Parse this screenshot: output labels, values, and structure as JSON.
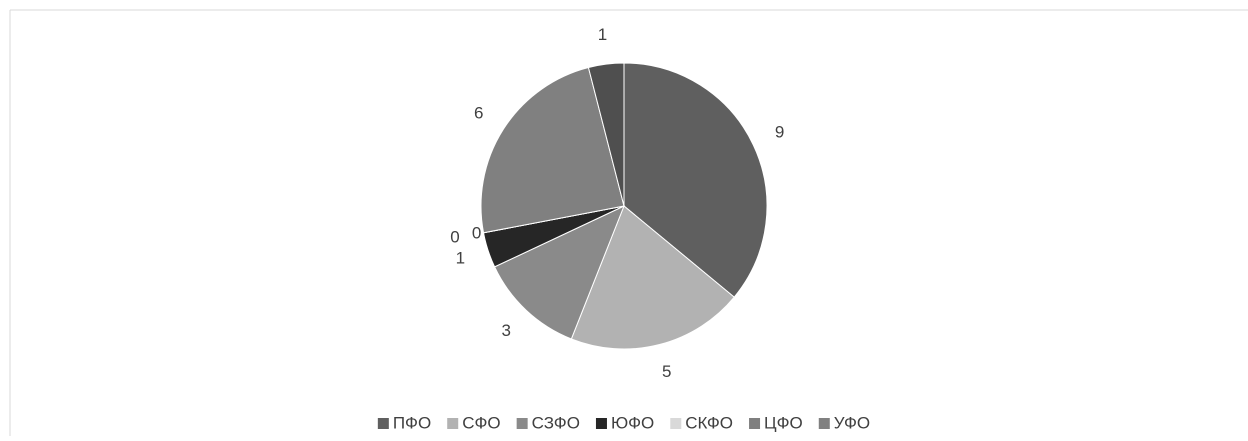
{
  "chart_data": {
    "type": "pie",
    "categories": [
      "ПФО",
      "СФО",
      "СЗФО",
      "ЮФО",
      "СКФО",
      "ЦФО",
      "УФО",
      null
    ],
    "values": [
      9,
      5,
      3,
      1,
      0,
      0,
      6,
      1
    ],
    "colors": [
      "#5f5f5f",
      "#b2b2b2",
      "#8a8a8a",
      "#262626",
      "#d9d9d9",
      "#7f7f7f",
      "#808080",
      "#4f4f4f"
    ],
    "legend": "bottom"
  }
}
